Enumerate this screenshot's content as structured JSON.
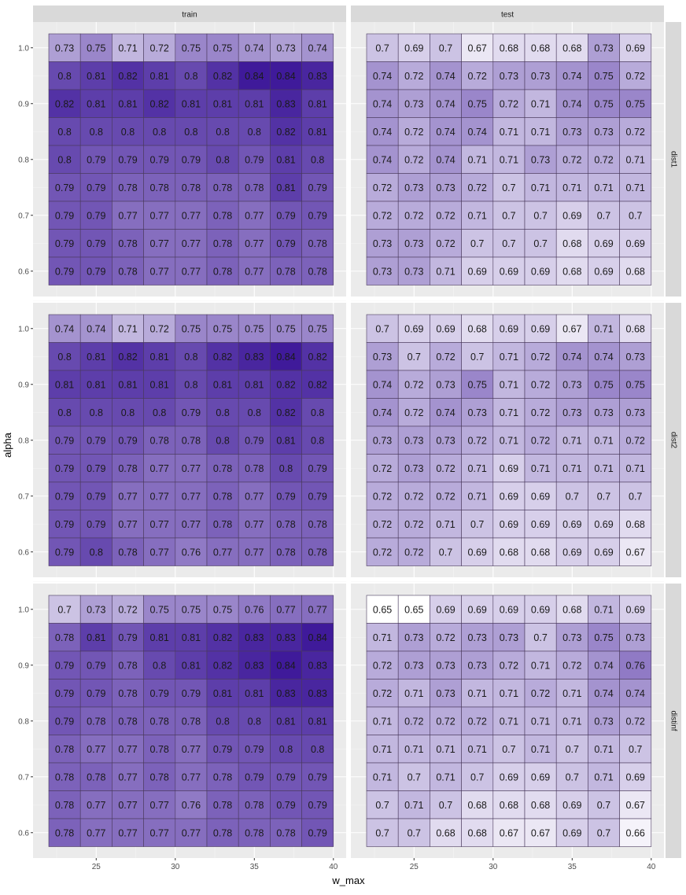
{
  "chart_data": {
    "type": "heatmap",
    "title": "",
    "xlabel": "w_max",
    "ylabel": "alpha",
    "facet_columns": [
      "train",
      "test"
    ],
    "facet_rows": [
      "dist1",
      "dist2",
      "distinf"
    ],
    "x_values": [
      23,
      25,
      27,
      29,
      31,
      33,
      35,
      37,
      39
    ],
    "y_values": [
      1.0,
      0.95,
      0.9,
      0.85,
      0.8,
      0.75,
      0.7,
      0.65,
      0.6
    ],
    "x_ticks": [
      "25",
      "30",
      "35",
      "40"
    ],
    "y_ticks": [
      "0.6",
      "0.7",
      "0.8",
      "0.9",
      "1.0"
    ],
    "color_scale": {
      "low": "#ffffff",
      "high": "#3f1a9a",
      "min": 0.65,
      "max": 0.84
    },
    "panels": [
      {
        "row": "dist1",
        "column": "train",
        "values": [
          [
            "0.73",
            "0.75",
            "0.71",
            "0.72",
            "0.75",
            "0.75",
            "0.74",
            "0.73",
            "0.74"
          ],
          [
            "0.8",
            "0.81",
            "0.82",
            "0.81",
            "0.8",
            "0.82",
            "0.84",
            "0.84",
            "0.83"
          ],
          [
            "0.82",
            "0.81",
            "0.81",
            "0.82",
            "0.81",
            "0.81",
            "0.81",
            "0.83",
            "0.81"
          ],
          [
            "0.8",
            "0.8",
            "0.8",
            "0.8",
            "0.8",
            "0.8",
            "0.8",
            "0.82",
            "0.81"
          ],
          [
            "0.8",
            "0.79",
            "0.79",
            "0.79",
            "0.79",
            "0.8",
            "0.79",
            "0.81",
            "0.8"
          ],
          [
            "0.79",
            "0.79",
            "0.78",
            "0.78",
            "0.78",
            "0.78",
            "0.78",
            "0.81",
            "0.79"
          ],
          [
            "0.79",
            "0.79",
            "0.77",
            "0.77",
            "0.77",
            "0.78",
            "0.77",
            "0.79",
            "0.79"
          ],
          [
            "0.79",
            "0.79",
            "0.78",
            "0.77",
            "0.77",
            "0.78",
            "0.77",
            "0.79",
            "0.78"
          ],
          [
            "0.79",
            "0.79",
            "0.78",
            "0.77",
            "0.77",
            "0.78",
            "0.77",
            "0.78",
            "0.78"
          ]
        ]
      },
      {
        "row": "dist1",
        "column": "test",
        "values": [
          [
            "0.7",
            "0.69",
            "0.7",
            "0.67",
            "0.68",
            "0.68",
            "0.68",
            "0.73",
            "0.69"
          ],
          [
            "0.74",
            "0.72",
            "0.74",
            "0.72",
            "0.73",
            "0.73",
            "0.74",
            "0.75",
            "0.72"
          ],
          [
            "0.74",
            "0.73",
            "0.74",
            "0.75",
            "0.72",
            "0.71",
            "0.74",
            "0.75",
            "0.75"
          ],
          [
            "0.74",
            "0.72",
            "0.74",
            "0.74",
            "0.71",
            "0.71",
            "0.73",
            "0.73",
            "0.72"
          ],
          [
            "0.74",
            "0.72",
            "0.74",
            "0.71",
            "0.71",
            "0.73",
            "0.72",
            "0.72",
            "0.71"
          ],
          [
            "0.72",
            "0.73",
            "0.73",
            "0.72",
            "0.7",
            "0.71",
            "0.71",
            "0.71",
            "0.71"
          ],
          [
            "0.72",
            "0.72",
            "0.72",
            "0.71",
            "0.7",
            "0.7",
            "0.69",
            "0.7",
            "0.7"
          ],
          [
            "0.73",
            "0.73",
            "0.72",
            "0.7",
            "0.7",
            "0.7",
            "0.68",
            "0.69",
            "0.69"
          ],
          [
            "0.73",
            "0.73",
            "0.71",
            "0.69",
            "0.69",
            "0.69",
            "0.68",
            "0.69",
            "0.68"
          ]
        ]
      },
      {
        "row": "dist2",
        "column": "train",
        "values": [
          [
            "0.74",
            "0.74",
            "0.71",
            "0.72",
            "0.75",
            "0.75",
            "0.75",
            "0.75",
            "0.75"
          ],
          [
            "0.8",
            "0.81",
            "0.82",
            "0.81",
            "0.8",
            "0.82",
            "0.83",
            "0.84",
            "0.82"
          ],
          [
            "0.81",
            "0.81",
            "0.81",
            "0.81",
            "0.8",
            "0.81",
            "0.81",
            "0.82",
            "0.82"
          ],
          [
            "0.8",
            "0.8",
            "0.8",
            "0.8",
            "0.79",
            "0.8",
            "0.8",
            "0.82",
            "0.8"
          ],
          [
            "0.79",
            "0.79",
            "0.79",
            "0.78",
            "0.78",
            "0.8",
            "0.79",
            "0.81",
            "0.8"
          ],
          [
            "0.79",
            "0.79",
            "0.78",
            "0.77",
            "0.77",
            "0.78",
            "0.78",
            "0.8",
            "0.79"
          ],
          [
            "0.79",
            "0.79",
            "0.77",
            "0.77",
            "0.77",
            "0.78",
            "0.77",
            "0.79",
            "0.79"
          ],
          [
            "0.79",
            "0.79",
            "0.77",
            "0.77",
            "0.77",
            "0.78",
            "0.77",
            "0.78",
            "0.78"
          ],
          [
            "0.79",
            "0.8",
            "0.78",
            "0.77",
            "0.76",
            "0.77",
            "0.77",
            "0.78",
            "0.78"
          ]
        ]
      },
      {
        "row": "dist2",
        "column": "test",
        "values": [
          [
            "0.7",
            "0.69",
            "0.69",
            "0.68",
            "0.69",
            "0.69",
            "0.67",
            "0.71",
            "0.68"
          ],
          [
            "0.73",
            "0.7",
            "0.72",
            "0.7",
            "0.71",
            "0.72",
            "0.74",
            "0.74",
            "0.73"
          ],
          [
            "0.74",
            "0.72",
            "0.73",
            "0.75",
            "0.71",
            "0.72",
            "0.73",
            "0.75",
            "0.75"
          ],
          [
            "0.74",
            "0.72",
            "0.74",
            "0.73",
            "0.71",
            "0.72",
            "0.73",
            "0.73",
            "0.73"
          ],
          [
            "0.73",
            "0.73",
            "0.73",
            "0.72",
            "0.71",
            "0.72",
            "0.71",
            "0.71",
            "0.72"
          ],
          [
            "0.72",
            "0.73",
            "0.72",
            "0.71",
            "0.69",
            "0.71",
            "0.71",
            "0.71",
            "0.71"
          ],
          [
            "0.72",
            "0.72",
            "0.72",
            "0.71",
            "0.69",
            "0.69",
            "0.7",
            "0.7",
            "0.7"
          ],
          [
            "0.72",
            "0.72",
            "0.71",
            "0.7",
            "0.69",
            "0.69",
            "0.69",
            "0.69",
            "0.68"
          ],
          [
            "0.72",
            "0.72",
            "0.7",
            "0.69",
            "0.68",
            "0.68",
            "0.69",
            "0.69",
            "0.67"
          ]
        ]
      },
      {
        "row": "distinf",
        "column": "train",
        "values": [
          [
            "0.7",
            "0.73",
            "0.72",
            "0.75",
            "0.75",
            "0.75",
            "0.76",
            "0.77",
            "0.77"
          ],
          [
            "0.78",
            "0.81",
            "0.79",
            "0.81",
            "0.81",
            "0.82",
            "0.83",
            "0.83",
            "0.84"
          ],
          [
            "0.79",
            "0.79",
            "0.78",
            "0.8",
            "0.81",
            "0.82",
            "0.83",
            "0.84",
            "0.83"
          ],
          [
            "0.79",
            "0.79",
            "0.78",
            "0.79",
            "0.79",
            "0.81",
            "0.81",
            "0.83",
            "0.83"
          ],
          [
            "0.79",
            "0.78",
            "0.78",
            "0.78",
            "0.78",
            "0.8",
            "0.8",
            "0.81",
            "0.81"
          ],
          [
            "0.78",
            "0.77",
            "0.77",
            "0.78",
            "0.77",
            "0.79",
            "0.79",
            "0.8",
            "0.8"
          ],
          [
            "0.78",
            "0.78",
            "0.77",
            "0.78",
            "0.77",
            "0.78",
            "0.79",
            "0.79",
            "0.79"
          ],
          [
            "0.78",
            "0.77",
            "0.77",
            "0.77",
            "0.76",
            "0.78",
            "0.78",
            "0.79",
            "0.79"
          ],
          [
            "0.78",
            "0.77",
            "0.77",
            "0.77",
            "0.77",
            "0.78",
            "0.78",
            "0.78",
            "0.79"
          ]
        ]
      },
      {
        "row": "distinf",
        "column": "test",
        "values": [
          [
            "0.65",
            "0.65",
            "0.69",
            "0.69",
            "0.69",
            "0.69",
            "0.68",
            "0.71",
            "0.69"
          ],
          [
            "0.71",
            "0.73",
            "0.72",
            "0.73",
            "0.73",
            "0.7",
            "0.73",
            "0.75",
            "0.73"
          ],
          [
            "0.72",
            "0.73",
            "0.73",
            "0.73",
            "0.72",
            "0.71",
            "0.72",
            "0.74",
            "0.76"
          ],
          [
            "0.72",
            "0.71",
            "0.73",
            "0.71",
            "0.71",
            "0.72",
            "0.71",
            "0.74",
            "0.74"
          ],
          [
            "0.71",
            "0.72",
            "0.72",
            "0.72",
            "0.71",
            "0.71",
            "0.71",
            "0.73",
            "0.72"
          ],
          [
            "0.71",
            "0.71",
            "0.71",
            "0.71",
            "0.7",
            "0.71",
            "0.7",
            "0.71",
            "0.7"
          ],
          [
            "0.71",
            "0.7",
            "0.71",
            "0.7",
            "0.69",
            "0.69",
            "0.7",
            "0.71",
            "0.69"
          ],
          [
            "0.7",
            "0.71",
            "0.7",
            "0.68",
            "0.68",
            "0.68",
            "0.69",
            "0.7",
            "0.67"
          ],
          [
            "0.7",
            "0.7",
            "0.68",
            "0.68",
            "0.67",
            "0.67",
            "0.69",
            "0.7",
            "0.66"
          ]
        ]
      }
    ],
    "grid": true,
    "legend": "none"
  }
}
